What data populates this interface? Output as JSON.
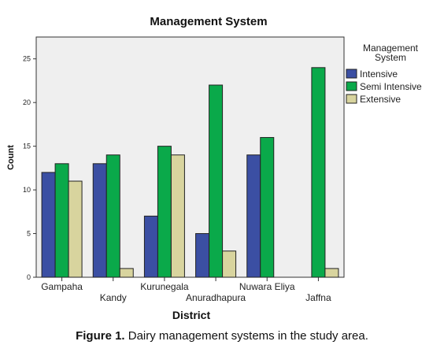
{
  "chart_data": {
    "type": "bar",
    "title": "Management System",
    "xlabel": "District",
    "ylabel": "Count",
    "categories": [
      "Gampaha",
      "Kandy",
      "Kurunegala",
      "Anuradhapura",
      "Nuwara Eliya",
      "Jaffna"
    ],
    "series": [
      {
        "name": "Intensive",
        "values": [
          12,
          13,
          7,
          5,
          14,
          0
        ],
        "color": "#3b4fa3"
      },
      {
        "name": "Semi Intensive",
        "values": [
          13,
          14,
          15,
          22,
          16,
          24
        ],
        "color": "#0aa94a"
      },
      {
        "name": "Extensive",
        "values": [
          11,
          1,
          14,
          3,
          0,
          1
        ],
        "color": "#d8d49e"
      }
    ],
    "ylim": [
      0,
      27.5
    ],
    "yticks": [
      0,
      5,
      10,
      15,
      20,
      25
    ],
    "legend_title": "Management\nSystem",
    "legend_position": "right",
    "grid": false,
    "plot_background": "#efefef"
  },
  "caption": {
    "label": "Figure 1.",
    "text": " Dairy management systems in the study area."
  }
}
